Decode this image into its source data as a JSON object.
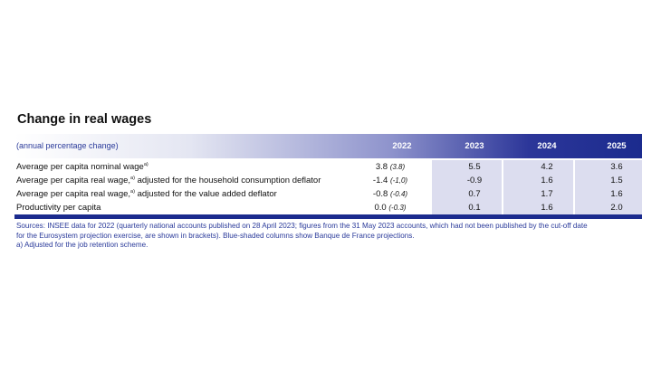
{
  "title": "Change in real wages",
  "header": {
    "unit": "(annual percentage change)",
    "years": [
      "2022",
      "2023",
      "2024",
      "2025"
    ]
  },
  "rows": [
    {
      "label": "Average per capita nominal wage",
      "note_mark": "a)",
      "label_suffix": "",
      "v2022": "3.8",
      "v2022_bracket": "(3.8)",
      "v2023": "5.5",
      "v2024": "4.2",
      "v2025": "3.6"
    },
    {
      "label": "Average per capita real wage,",
      "note_mark": "a)",
      "label_suffix": " adjusted for the household consumption deflator",
      "v2022": "-1.4",
      "v2022_bracket": "(-1,0)",
      "v2023": "-0.9",
      "v2024": "1.6",
      "v2025": "1.5"
    },
    {
      "label": "Average per capita real wage,",
      "note_mark": "a)",
      "label_suffix": " adjusted for the value added deflator",
      "v2022": "-0.8",
      "v2022_bracket": "(-0.4)",
      "v2023": "0.7",
      "v2024": "1.7",
      "v2025": "1.6"
    },
    {
      "label": "Productivity per capita",
      "note_mark": "",
      "label_suffix": "",
      "v2022": "0.0",
      "v2022_bracket": "(-0.3)",
      "v2023": "0.1",
      "v2024": "1.6",
      "v2025": "2.0"
    }
  ],
  "notes": {
    "sources_line1": "Sources: INSEE data for 2022 (quarterly national accounts published on 28 April 2023; figures from the 31 May 2023 accounts, which had not been published by the cut-off date",
    "sources_line2": "for the Eurosystem projection exercise, are shown in brackets). Blue-shaded columns show Banque de France projections.",
    "footnote_a": "a)  Adjusted for the job retention scheme."
  },
  "colors": {
    "header_dark": "#1b2b8e",
    "projection_shade": "#dcddef",
    "note_text": "#2a3a9a"
  }
}
